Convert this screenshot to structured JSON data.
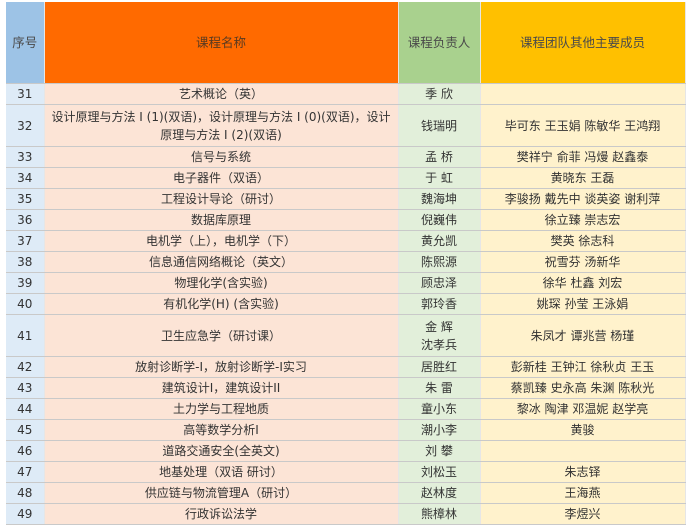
{
  "colors": {
    "header_seq": "#9dc3e6",
    "header_name": "#ff6a00",
    "header_leader": "#a9d18e",
    "header_members": "#ffc000",
    "row_seq": "#deebf7",
    "row_name": "#fce4d6",
    "row_leader": "#e2efda",
    "row_members": "#fff2cc"
  },
  "headers": [
    "序号",
    "课程名称",
    "课程负责人",
    "课程团队其他主要成员"
  ],
  "rows": [
    {
      "no": "31",
      "name": "艺术概论（英）",
      "leader": "季 欣",
      "members": ""
    },
    {
      "no": "32",
      "name": "设计原理与方法 I (1)(双语)，设计原理与方法 I (0)(双语)，设计原理与方法 I (2)(双语)",
      "leader": "钱瑞明",
      "members": "毕可东 王玉娟 陈敏华 王鸿翔"
    },
    {
      "no": "33",
      "name": "信号与系统",
      "leader": "孟 桥",
      "members": "樊祥宁 俞菲 冯熳 赵鑫泰"
    },
    {
      "no": "34",
      "name": "电子器件（双语）",
      "leader": "于 虹",
      "members": "黄晓东 王磊"
    },
    {
      "no": "35",
      "name": "工程设计导论（研讨）",
      "leader": "魏海坤",
      "members": "李骏扬 戴先中 谈英姿 谢利萍"
    },
    {
      "no": "36",
      "name": "数据库原理",
      "leader": "倪巍伟",
      "members": "徐立臻 崇志宏"
    },
    {
      "no": "37",
      "name": "电机学（上），电机学（下）",
      "leader": "黄允凯",
      "members": "樊英 徐志科"
    },
    {
      "no": "38",
      "name": "信息通信网络概论（英文）",
      "leader": "陈熙源",
      "members": "祝雪芬 汤新华"
    },
    {
      "no": "39",
      "name": "物理化学(含实验)",
      "leader": "顾忠泽",
      "members": "徐华 杜鑫 刘宏"
    },
    {
      "no": "40",
      "name": "有机化学(H) (含实验)",
      "leader": "郭玲香",
      "members": "姚琛 孙莹 王泳娟"
    },
    {
      "no": "41",
      "name": "卫生应急学（研讨课）",
      "leader": "金 辉\n沈孝兵",
      "members": "朱凤才 谭兆营 杨瑾"
    },
    {
      "no": "42",
      "name": "放射诊断学-I，放射诊断学-I实习",
      "leader": "居胜红",
      "members": "彭新桂 王钟江 徐秋贞 王玉"
    },
    {
      "no": "43",
      "name": "建筑设计I，建筑设计II",
      "leader": "朱 雷",
      "members": "蔡凯臻 史永高 朱渊 陈秋光"
    },
    {
      "no": "44",
      "name": "土力学与工程地质",
      "leader": "童小东",
      "members": "黎冰 陶津 邓温妮 赵学亮"
    },
    {
      "no": "45",
      "name": "高等数学分析I",
      "leader": "潮小李",
      "members": "黄骏"
    },
    {
      "no": "46",
      "name": "道路交通安全(全英文)",
      "leader": "刘 攀",
      "members": ""
    },
    {
      "no": "47",
      "name": "地基处理（双语 研讨）",
      "leader": "刘松玉",
      "members": "朱志铎"
    },
    {
      "no": "48",
      "name": "供应链与物流管理A（研讨）",
      "leader": "赵林度",
      "members": "王海燕"
    },
    {
      "no": "49",
      "name": "行政诉讼法学",
      "leader": "熊樟林",
      "members": "李煜兴"
    }
  ]
}
